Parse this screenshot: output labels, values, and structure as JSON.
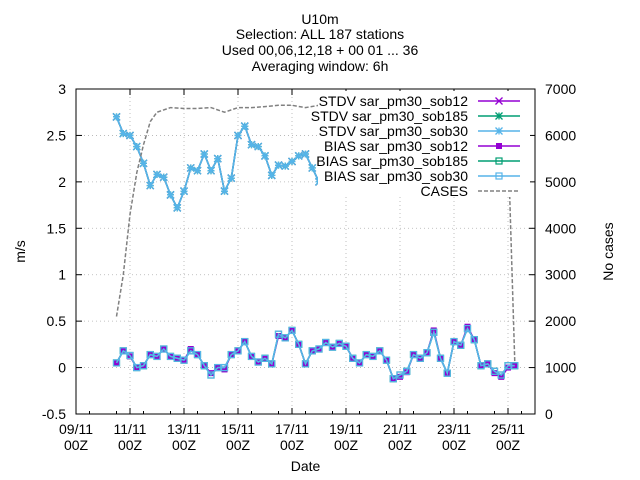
{
  "title_lines": [
    "U10m",
    "Selection: ALL    187 stations",
    "Used 00,06,12,18 + 00 01 ... 36",
    "Averaging window:  6h"
  ],
  "colors": {
    "stdv_ob12": "#9400d3",
    "stdv_ob185": "#009e73",
    "stdv_ob30": "#56b4e9",
    "bias_ob12": "#9400d3",
    "bias_ob185": "#009e73",
    "bias_ob30": "#56b4e9",
    "cases": "#808080",
    "grid": "#b0b0b0"
  },
  "chart_data": {
    "type": "line",
    "xlabel": "Date",
    "ylabel": "m/s",
    "y2label": "No cases",
    "xlim": [
      0,
      17
    ],
    "ylim": [
      -0.5,
      3
    ],
    "y2lim": [
      0,
      7000
    ],
    "x_ticks": [
      {
        "x": 0,
        "l1": "09/11",
        "l2": "00Z"
      },
      {
        "x": 2,
        "l1": "11/11",
        "l2": "00Z"
      },
      {
        "x": 4,
        "l1": "13/11",
        "l2": "00Z"
      },
      {
        "x": 6,
        "l1": "15/11",
        "l2": "00Z"
      },
      {
        "x": 8,
        "l1": "17/11",
        "l2": "00Z"
      },
      {
        "x": 10,
        "l1": "19/11",
        "l2": "00Z"
      },
      {
        "x": 12,
        "l1": "21/11",
        "l2": "00Z"
      },
      {
        "x": 14,
        "l1": "23/11",
        "l2": "00Z"
      },
      {
        "x": 16,
        "l1": "25/11",
        "l2": "00Z"
      }
    ],
    "y_ticks": [
      "-0.5",
      "0",
      "0.5",
      "1",
      "1.5",
      "2",
      "2.5",
      "3"
    ],
    "y_tick_values": [
      -0.5,
      0,
      0.5,
      1,
      1.5,
      2,
      2.5,
      3
    ],
    "y2_ticks": [
      "0",
      "1000",
      "2000",
      "3000",
      "4000",
      "5000",
      "6000",
      "7000"
    ],
    "y2_tick_values": [
      0,
      1000,
      2000,
      3000,
      4000,
      5000,
      6000,
      7000
    ],
    "legend_position": "top-right",
    "x": [
      1.5,
      1.75,
      2,
      2.25,
      2.5,
      2.75,
      3,
      3.25,
      3.5,
      3.75,
      4,
      4.25,
      4.5,
      4.75,
      5,
      5.25,
      5.5,
      5.75,
      6,
      6.25,
      6.5,
      6.75,
      7,
      7.25,
      7.5,
      7.75,
      8,
      8.25,
      8.5,
      8.75,
      9,
      9.25,
      9.5,
      9.75,
      10,
      10.25,
      10.5,
      10.75,
      11,
      11.25,
      11.5,
      11.75,
      12,
      12.25,
      12.5,
      12.75,
      13,
      13.25,
      13.5,
      13.75,
      14,
      14.25,
      14.5,
      14.75,
      15,
      15.25,
      15.5,
      15.75,
      16,
      16.25
    ],
    "series": [
      {
        "name": "STDV sar_pm30_sob12",
        "axis": "y",
        "style": "stdv",
        "marker": "x",
        "values": [
          2.7,
          2.52,
          2.5,
          2.38,
          2.2,
          1.96,
          2.08,
          2.05,
          1.86,
          1.72,
          1.9,
          2.15,
          2.12,
          2.3,
          2.12,
          2.25,
          1.9,
          2.04,
          2.5,
          2.6,
          2.4,
          2.38,
          2.28,
          2.07,
          2.18,
          2.17,
          2.22,
          2.28,
          2.3,
          2.15,
          2.0,
          2.1,
          2.25,
          2.04,
          2.1,
          1.97,
          2.25,
          2.3,
          2.62,
          2.52,
          2.8,
          2.7,
          2.66,
          2.63,
          2.62,
          2.56,
          2.5,
          2.46,
          2.45,
          2.3,
          2.35,
          2.6,
          2.4,
          2.5,
          2.5,
          2.6,
          2.4,
          2.12,
          1.97,
          2.1
        ]
      },
      {
        "name": "STDV sar_pm30_sob185",
        "axis": "y",
        "style": "stdv",
        "marker": "star",
        "values": [
          2.7,
          2.52,
          2.5,
          2.38,
          2.2,
          1.96,
          2.08,
          2.05,
          1.86,
          1.72,
          1.9,
          2.15,
          2.12,
          2.3,
          2.12,
          2.25,
          1.9,
          2.04,
          2.5,
          2.6,
          2.4,
          2.38,
          2.28,
          2.07,
          2.18,
          2.17,
          2.22,
          2.28,
          2.3,
          2.15,
          2.0,
          2.1,
          2.25,
          2.04,
          2.1,
          1.97,
          2.25,
          2.3,
          2.62,
          2.52,
          2.78,
          2.68,
          2.66,
          2.63,
          2.62,
          2.56,
          2.5,
          2.46,
          2.45,
          2.3,
          2.35,
          2.6,
          2.4,
          2.5,
          2.5,
          2.6,
          2.4,
          2.12,
          1.97,
          2.1
        ]
      },
      {
        "name": "STDV sar_pm30_sob30",
        "axis": "y",
        "style": "stdv",
        "marker": "star",
        "values": [
          2.7,
          2.52,
          2.5,
          2.38,
          2.2,
          1.96,
          2.08,
          2.05,
          1.86,
          1.72,
          1.9,
          2.15,
          2.12,
          2.3,
          2.12,
          2.25,
          1.9,
          2.04,
          2.5,
          2.6,
          2.4,
          2.38,
          2.28,
          2.07,
          2.18,
          2.17,
          2.22,
          2.28,
          2.3,
          2.15,
          2.0,
          2.1,
          2.25,
          2.04,
          2.1,
          1.97,
          2.25,
          2.3,
          2.62,
          2.52,
          2.78,
          2.68,
          2.66,
          2.63,
          2.62,
          2.56,
          2.5,
          2.46,
          2.45,
          2.3,
          2.35,
          2.6,
          2.4,
          2.5,
          2.5,
          2.6,
          2.4,
          2.12,
          1.97,
          2.1
        ]
      },
      {
        "name": "BIAS sar_pm30_sob12",
        "axis": "y",
        "style": "bias",
        "marker": "filled-square",
        "values": [
          0.05,
          0.18,
          0.12,
          0.0,
          0.02,
          0.14,
          0.12,
          0.2,
          0.12,
          0.1,
          0.08,
          0.2,
          0.14,
          0.02,
          -0.06,
          0.0,
          -0.02,
          0.14,
          0.18,
          0.28,
          0.12,
          0.06,
          0.1,
          0.04,
          0.34,
          0.32,
          0.4,
          0.25,
          0.04,
          0.18,
          0.2,
          0.27,
          0.22,
          0.26,
          0.23,
          0.1,
          0.05,
          0.14,
          0.12,
          0.18,
          0.08,
          -0.12,
          -0.1,
          -0.05,
          0.14,
          0.1,
          0.16,
          0.4,
          0.1,
          -0.06,
          0.28,
          0.24,
          0.44,
          0.3,
          0.02,
          0.04,
          -0.06,
          -0.1,
          0.0,
          0.02
        ]
      },
      {
        "name": "BIAS sar_pm30_sob185",
        "axis": "y",
        "style": "bias",
        "marker": "square",
        "values": [
          0.05,
          0.18,
          0.13,
          0.0,
          0.02,
          0.14,
          0.12,
          0.2,
          0.12,
          0.1,
          0.08,
          0.18,
          0.14,
          0.02,
          -0.08,
          0.0,
          0.0,
          0.14,
          0.18,
          0.28,
          0.12,
          0.06,
          0.1,
          0.04,
          0.36,
          0.32,
          0.4,
          0.25,
          0.04,
          0.18,
          0.2,
          0.27,
          0.22,
          0.26,
          0.23,
          0.1,
          0.05,
          0.14,
          0.12,
          0.18,
          0.08,
          -0.12,
          -0.08,
          -0.04,
          0.14,
          0.1,
          0.16,
          0.38,
          0.1,
          -0.06,
          0.28,
          0.24,
          0.42,
          0.3,
          0.02,
          0.04,
          -0.04,
          -0.08,
          0.02,
          0.02
        ]
      },
      {
        "name": "BIAS sar_pm30_sob30",
        "axis": "y",
        "style": "bias",
        "marker": "square",
        "values": [
          0.05,
          0.18,
          0.13,
          0.0,
          0.02,
          0.14,
          0.12,
          0.2,
          0.12,
          0.1,
          0.08,
          0.18,
          0.14,
          0.02,
          -0.08,
          0.0,
          0.0,
          0.14,
          0.18,
          0.28,
          0.12,
          0.06,
          0.1,
          0.04,
          0.36,
          0.32,
          0.4,
          0.25,
          0.04,
          0.18,
          0.2,
          0.27,
          0.22,
          0.26,
          0.23,
          0.1,
          0.05,
          0.14,
          0.12,
          0.18,
          0.08,
          -0.12,
          -0.08,
          -0.04,
          0.14,
          0.1,
          0.16,
          0.38,
          0.1,
          -0.06,
          0.28,
          0.24,
          0.42,
          0.3,
          0.02,
          0.04,
          -0.04,
          -0.08,
          0.02,
          0.02
        ]
      },
      {
        "name": "CASES",
        "axis": "y2",
        "style": "cases",
        "marker": "none",
        "x": [
          1.5,
          1.75,
          2,
          2.25,
          2.5,
          2.75,
          3,
          3.5,
          4,
          4.5,
          5,
          5.5,
          6,
          6.5,
          7,
          7.5,
          8,
          8.5,
          9,
          9.5,
          10,
          10.5,
          11,
          11.5,
          12,
          12.5,
          13,
          13.5,
          14,
          14.5,
          15,
          15.5,
          16,
          16.25
        ],
        "values": [
          2100,
          3000,
          4300,
          5200,
          5800,
          6300,
          6500,
          6600,
          6580,
          6580,
          6600,
          6500,
          6600,
          6600,
          6620,
          6650,
          6650,
          6600,
          6650,
          6600,
          6650,
          6620,
          6600,
          6620,
          6650,
          6600,
          6650,
          6620,
          6650,
          6600,
          6650,
          6600,
          5900,
          1100
        ]
      }
    ]
  }
}
